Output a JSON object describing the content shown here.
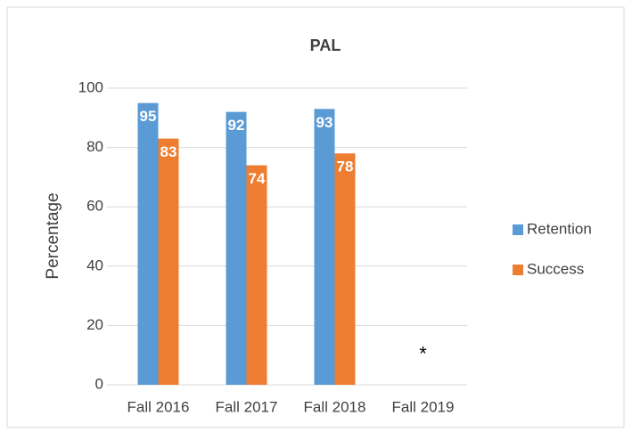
{
  "chart_data": {
    "type": "bar",
    "title": "PAL",
    "ylabel": "Percentage",
    "categories": [
      "Fall 2016",
      "Fall 2017",
      "Fall 2018",
      "Fall 2019"
    ],
    "series": [
      {
        "name": "Retention",
        "color": "#5b9bd5",
        "values": [
          95,
          92,
          93,
          null
        ]
      },
      {
        "name": "Success",
        "color": "#ed7d31",
        "values": [
          83,
          74,
          78,
          null
        ]
      }
    ],
    "ylim": [
      0,
      100
    ],
    "yticks": [
      0,
      20,
      40,
      60,
      80,
      100
    ],
    "grid": true,
    "legend": "right",
    "annotations": [
      {
        "text": "*",
        "category": 3,
        "value": 10
      }
    ]
  }
}
